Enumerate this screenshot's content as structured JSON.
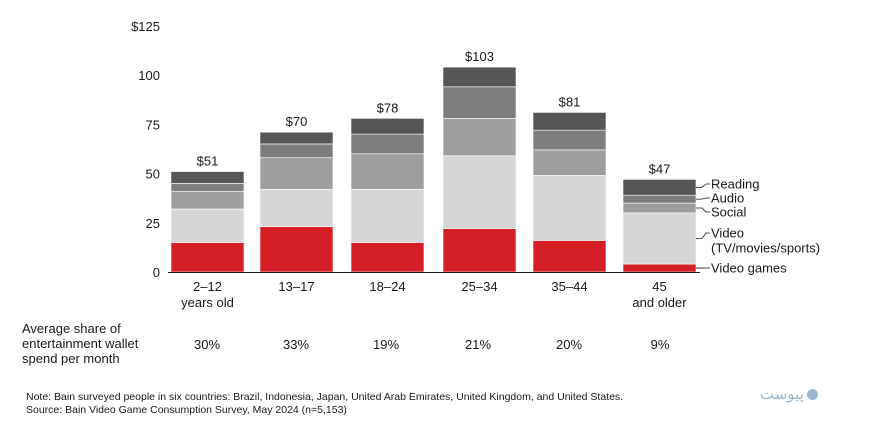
{
  "chart_data": {
    "type": "bar",
    "stacked": true,
    "ylim": [
      0,
      125
    ],
    "yticks": [
      0,
      25,
      50,
      75,
      100,
      125
    ],
    "ytick_labels": [
      "0",
      "25",
      "50",
      "75",
      "100",
      "$125"
    ],
    "categories": [
      "2–12\nyears old",
      "13–17",
      "18–24",
      "25–34",
      "35–44",
      "45\nand older"
    ],
    "totals": [
      "$51",
      "$70",
      "$78",
      "$103",
      "$81",
      "$47"
    ],
    "series": [
      {
        "name": "Video games",
        "color": "#d41f26",
        "values": [
          15,
          23,
          15,
          22,
          16,
          4
        ]
      },
      {
        "name": "Video\n(TV/movies/sports)",
        "color": "#d6d6d8",
        "values": [
          17,
          19,
          27,
          37,
          33,
          26
        ]
      },
      {
        "name": "Social",
        "color": "#9e9e9e",
        "values": [
          9,
          16,
          18,
          19,
          13,
          5
        ]
      },
      {
        "name": "Audio",
        "color": "#7d7d7d",
        "values": [
          4,
          7,
          10,
          16,
          10,
          4
        ]
      },
      {
        "name": "Reading",
        "color": "#565658",
        "values": [
          6,
          6,
          8,
          10,
          9,
          8
        ]
      }
    ]
  },
  "share": {
    "title": "Average share of entertainment wallet spend per month",
    "values": [
      "30%",
      "33%",
      "19%",
      "21%",
      "20%",
      "9%"
    ]
  },
  "notes": {
    "note": "Note: Bain surveyed people in six countries: Brazil, Indonesia, Japan, United Arab Emirates, United Kingdom, and United States.",
    "source": "Source: Bain Video Game Consumption Survey, May 2024 (n=5,153)"
  },
  "watermark": "پیوست"
}
